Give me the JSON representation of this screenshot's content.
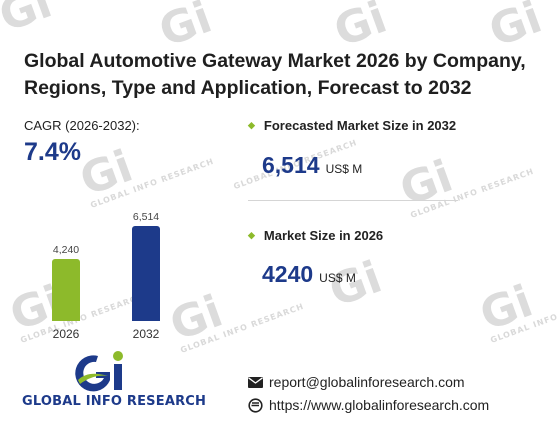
{
  "header": {
    "title": "Global Automotive Gateway Market 2026 by Company, Regions, Type and Application, Forecast to 2032"
  },
  "cagr": {
    "label": "CAGR (2026-2032):",
    "value": "7.4%"
  },
  "chart_data": {
    "type": "bar",
    "categories": [
      "2026",
      "2032"
    ],
    "values": [
      4240,
      6514
    ],
    "value_labels": [
      "4,240",
      "6,514"
    ],
    "colors": [
      "#8dba2b",
      "#1d3a8a"
    ]
  },
  "forecast": {
    "label": "Forecasted Market Size in 2032",
    "value": "6,514",
    "unit": "US$ M"
  },
  "market": {
    "label": "Market Size in 2026",
    "value": "4240",
    "unit": "US$ M"
  },
  "brand": {
    "name": "GLOBAL INFO RESEARCH",
    "watermark": "GLOBAL INFO RESEARCH"
  },
  "contact": {
    "email": "report@globalinforesearch.com",
    "website": "https://www.globalinforesearch.com",
    "email_icon": "envelope-icon",
    "web_icon": "web-icon"
  }
}
